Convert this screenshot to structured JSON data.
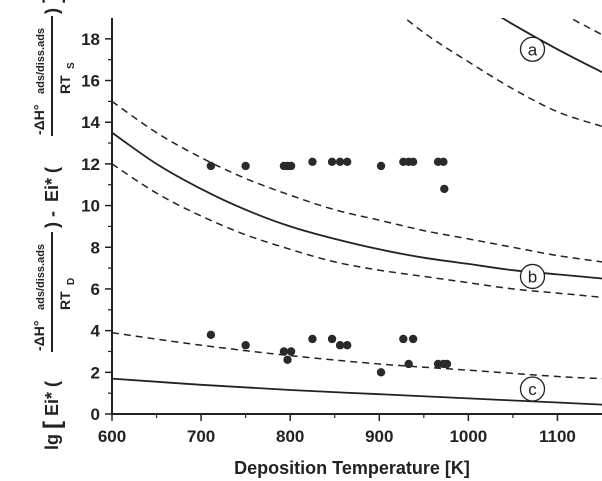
{
  "chart_data": {
    "type": "scatter",
    "xlabel": "Deposition Temperature [K]",
    "ylabel": {
      "prefix": "lg",
      "ei": "Ei*",
      "minus_dh": "-ΔH°",
      "sub": "ads/diss.ads",
      "rt_d": "RT",
      "d": "D",
      "rt_s": "RT",
      "s": "S",
      "dash": "-"
    },
    "xlim": [
      600,
      1150
    ],
    "ylim": [
      0,
      19
    ],
    "xticks": [
      600,
      700,
      800,
      900,
      1000,
      1100
    ],
    "yticks": [
      0,
      2,
      4,
      6,
      8,
      10,
      12,
      14,
      16,
      18
    ],
    "grid": false,
    "series": [
      {
        "marker": "dot",
        "points": [
          [
            711,
            11.9
          ],
          [
            750,
            11.9
          ],
          [
            793,
            11.9
          ],
          [
            797,
            11.9
          ],
          [
            801,
            11.9
          ],
          [
            825,
            12.1
          ],
          [
            847,
            12.1
          ],
          [
            856,
            12.1
          ],
          [
            864,
            12.1
          ],
          [
            902,
            11.9
          ],
          [
            927,
            12.1
          ],
          [
            933,
            12.1
          ],
          [
            938,
            12.1
          ],
          [
            966,
            12.1
          ],
          [
            972,
            12.1
          ],
          [
            973,
            10.8
          ]
        ]
      },
      {
        "marker": "dot",
        "points": [
          [
            711,
            3.8
          ],
          [
            750,
            3.3
          ],
          [
            793,
            3.0
          ],
          [
            797,
            2.6
          ],
          [
            801,
            3.0
          ],
          [
            825,
            3.6
          ],
          [
            847,
            3.6
          ],
          [
            856,
            3.3
          ],
          [
            864,
            3.3
          ],
          [
            902,
            2.0
          ],
          [
            927,
            3.6
          ],
          [
            933,
            2.4
          ],
          [
            938,
            3.6
          ],
          [
            966,
            2.4
          ],
          [
            972,
            2.4
          ],
          [
            976,
            2.4
          ]
        ]
      }
    ],
    "curves": [
      {
        "label": "a",
        "style": "solid",
        "points": [
          [
            1000,
            20
          ],
          [
            1050,
            18.7
          ],
          [
            1100,
            17.5
          ],
          [
            1150,
            16.4
          ]
        ]
      },
      {
        "label": "",
        "style": "dashed",
        "points": [
          [
            1070,
            20
          ],
          [
            1110,
            19.1
          ],
          [
            1150,
            18.2
          ]
        ]
      },
      {
        "label": "",
        "style": "dashed",
        "points": [
          [
            900,
            20
          ],
          [
            950,
            18.3
          ],
          [
            1000,
            16.9
          ],
          [
            1050,
            15.6
          ],
          [
            1100,
            14.5
          ],
          [
            1150,
            13.8
          ]
        ]
      },
      {
        "label": "b",
        "style": "solid",
        "points": [
          [
            600,
            13.5
          ],
          [
            650,
            12.0
          ],
          [
            700,
            10.8
          ],
          [
            750,
            9.8
          ],
          [
            800,
            9.0
          ],
          [
            850,
            8.4
          ],
          [
            900,
            7.9
          ],
          [
            950,
            7.5
          ],
          [
            1000,
            7.2
          ],
          [
            1050,
            6.9
          ],
          [
            1100,
            6.7
          ],
          [
            1150,
            6.5
          ]
        ]
      },
      {
        "label": "",
        "style": "dashed",
        "points": [
          [
            600,
            15.0
          ],
          [
            650,
            13.5
          ],
          [
            700,
            12.3
          ],
          [
            750,
            11.3
          ],
          [
            800,
            10.5
          ],
          [
            850,
            9.8
          ],
          [
            900,
            9.3
          ],
          [
            950,
            8.8
          ],
          [
            1000,
            8.4
          ],
          [
            1050,
            8.0
          ],
          [
            1100,
            7.6
          ],
          [
            1150,
            7.3
          ]
        ]
      },
      {
        "label": "",
        "style": "dashed",
        "points": [
          [
            600,
            12.0
          ],
          [
            650,
            10.6
          ],
          [
            700,
            9.5
          ],
          [
            750,
            8.6
          ],
          [
            800,
            7.9
          ],
          [
            850,
            7.3
          ],
          [
            900,
            6.9
          ],
          [
            950,
            6.6
          ],
          [
            1000,
            6.3
          ],
          [
            1050,
            6.0
          ],
          [
            1100,
            5.8
          ],
          [
            1150,
            5.6
          ]
        ]
      },
      {
        "label": "",
        "style": "dashed",
        "points": [
          [
            600,
            3.9
          ],
          [
            700,
            3.3
          ],
          [
            800,
            2.8
          ],
          [
            900,
            2.4
          ],
          [
            1000,
            2.1
          ],
          [
            1100,
            1.8
          ],
          [
            1150,
            1.7
          ]
        ]
      },
      {
        "label": "c",
        "style": "solid",
        "points": [
          [
            600,
            1.7
          ],
          [
            700,
            1.4
          ],
          [
            800,
            1.15
          ],
          [
            900,
            0.95
          ],
          [
            1000,
            0.75
          ],
          [
            1100,
            0.55
          ],
          [
            1150,
            0.45
          ]
        ]
      }
    ],
    "curve_labels": [
      {
        "text": "a",
        "x": 1072,
        "y": 17.5
      },
      {
        "text": "b",
        "x": 1072,
        "y": 6.6
      },
      {
        "text": "c",
        "x": 1072,
        "y": 1.2
      }
    ]
  }
}
